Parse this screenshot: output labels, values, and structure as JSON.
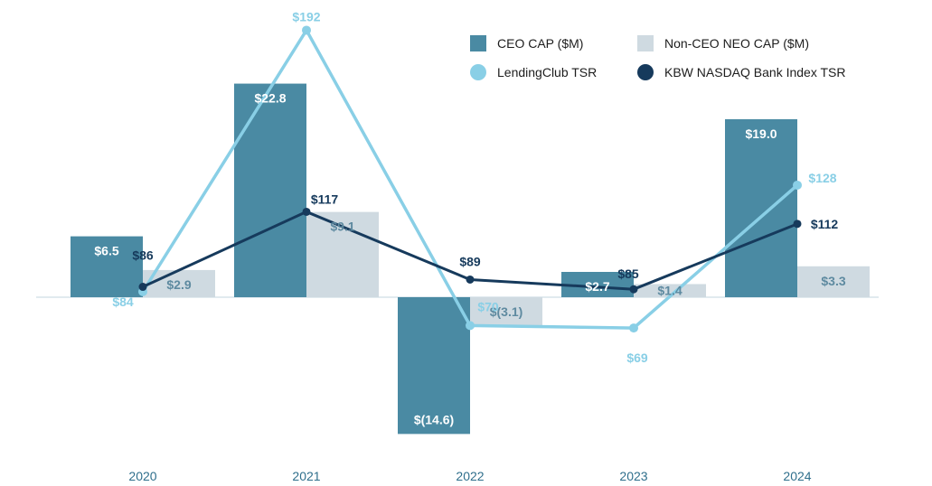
{
  "chart_data": {
    "type": "bar",
    "title": "",
    "xlabel": "",
    "ylabel": "",
    "categories": [
      "2020",
      "2021",
      "2022",
      "2023",
      "2024"
    ],
    "bar_ylim": [
      -20,
      30
    ],
    "line_ylim": [
      0,
      200
    ],
    "series": [
      {
        "name": "CEO CAP ($M)",
        "kind": "bar",
        "color": "#4a8aa3",
        "values": [
          6.5,
          22.8,
          -14.6,
          2.7,
          19.0
        ],
        "labels": [
          "$6.5",
          "$22.8",
          "$(14.6)",
          "$2.7",
          "$19.0"
        ]
      },
      {
        "name": "Non-CEO NEO CAP ($M)",
        "kind": "bar",
        "color": "#cfdae1",
        "values": [
          2.9,
          9.1,
          -3.1,
          1.4,
          3.3
        ],
        "labels": [
          "$2.9",
          "$9.1",
          "$(3.1)",
          "$1.4",
          "$3.3"
        ]
      },
      {
        "name": "LendingClub TSR",
        "kind": "line",
        "color": "#89cfe6",
        "values": [
          84,
          192,
          70,
          69,
          128
        ],
        "labels": [
          "$84",
          "$192",
          "$70",
          "$69",
          "$128"
        ]
      },
      {
        "name": "KBW NASDAQ Bank Index TSR",
        "kind": "line",
        "color": "#163a5c",
        "values": [
          86,
          117,
          89,
          85,
          112
        ],
        "labels": [
          "$86",
          "$117",
          "$89",
          "$85",
          "$112"
        ]
      }
    ],
    "legend_position": "top-right"
  }
}
